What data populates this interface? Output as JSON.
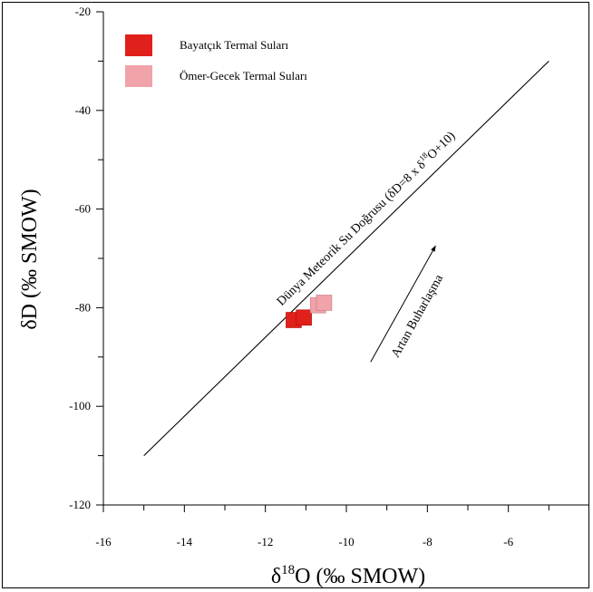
{
  "chart_data": {
    "type": "scatter",
    "xlim": [
      -16,
      -4
    ],
    "ylim": [
      -120,
      -20
    ],
    "x_ticks": [
      {
        "value": -16,
        "label": "-16"
      },
      {
        "value": -14,
        "label": "-14"
      },
      {
        "value": -12,
        "label": "-12"
      },
      {
        "value": -10,
        "label": "-10"
      },
      {
        "value": -8,
        "label": "-8"
      },
      {
        "value": -6,
        "label": "-6"
      }
    ],
    "y_ticks": [
      {
        "value": -20,
        "label": "-20"
      },
      {
        "value": -40,
        "label": "-40"
      },
      {
        "value": -60,
        "label": "-60"
      },
      {
        "value": -80,
        "label": "-80"
      },
      {
        "value": -100,
        "label": "-100"
      },
      {
        "value": -120,
        "label": "-120"
      }
    ],
    "xlabel": {
      "prefix": "δ",
      "sup": "18",
      "suffix": "O (‰ SMOW)"
    },
    "ylabel": "δD (‰ SMOW)",
    "grid": false,
    "legend_position": "top-left",
    "series": [
      {
        "name": "Bayatçık Termal Suları",
        "color": "#e0201a",
        "points": [
          {
            "x": -11.3,
            "y": -82.5
          },
          {
            "x": -11.05,
            "y": -82.0
          }
        ]
      },
      {
        "name": "Ömer-Gecek Termal Suları",
        "color": "#f0a3a8",
        "points": [
          {
            "x": -10.7,
            "y": -79.5
          },
          {
            "x": -10.55,
            "y": -79.0
          }
        ]
      }
    ],
    "lines": [
      {
        "label_parts": [
          "Dünya Meteorik Su Doğrusu (δD=8 x δ",
          "18",
          "O+10)"
        ],
        "x1": -15,
        "y1": -110,
        "x2": -5,
        "y2": -30
      }
    ],
    "arrow": {
      "label": "Artan Buharlaşma",
      "x1": -9.4,
      "y1": -91,
      "x2": -7.8,
      "y2": -67.5
    }
  }
}
